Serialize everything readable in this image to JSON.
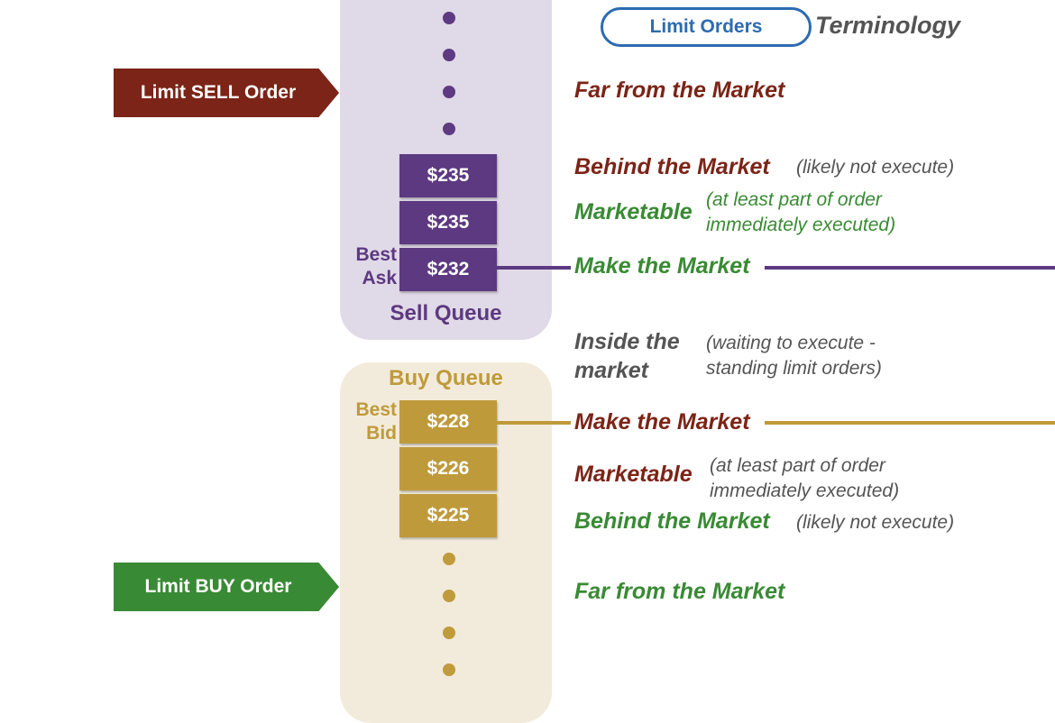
{
  "header": {
    "pill_label": "Limit Orders",
    "title": "Terminology"
  },
  "colors": {
    "sell": "#5c3981",
    "buy": "#bf9a3b",
    "red_text": "#7b2417",
    "green_text": "#398a34",
    "blue_pill": "#2d6bb0"
  },
  "orders": {
    "sell_label": "Limit SELL Order",
    "buy_label": "Limit BUY Order"
  },
  "sell_queue": {
    "label": "Sell Queue",
    "best_label_1": "Best",
    "best_label_2": "Ask",
    "prices": [
      "$235",
      "$235",
      "$232"
    ]
  },
  "buy_queue": {
    "label": "Buy Queue",
    "best_label_1": "Best",
    "best_label_2": "Bid",
    "prices": [
      "$228",
      "$226",
      "$225"
    ]
  },
  "terms": {
    "sell_far": "Far from the Market",
    "sell_behind": "Behind the Market",
    "sell_behind_note": "(likely not execute)",
    "sell_marketable": "Marketable",
    "sell_marketable_note_1": "(at least part of order",
    "sell_marketable_note_2": "immediately executed)",
    "sell_make": "Make the Market",
    "inside_1": "Inside the",
    "inside_2": "market",
    "inside_note_1": "(waiting to execute -",
    "inside_note_2": "standing limit orders)",
    "buy_make": "Make the Market",
    "buy_marketable": "Marketable",
    "buy_marketable_note_1": "(at least part of order",
    "buy_marketable_note_2": "immediately executed)",
    "buy_behind": "Behind the Market",
    "buy_behind_note": "(likely not execute)",
    "buy_far": "Far from the Market"
  }
}
